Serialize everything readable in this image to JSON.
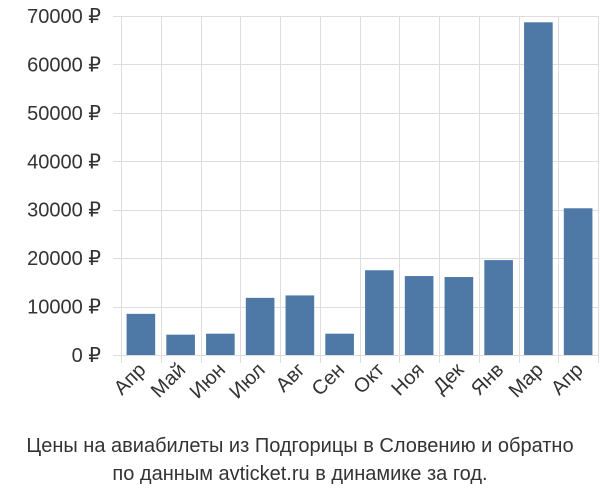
{
  "chart_data": {
    "type": "bar",
    "categories": [
      "Апр",
      "Май",
      "Июн",
      "Июл",
      "Авг",
      "Сен",
      "Окт",
      "Ноя",
      "Дек",
      "Янв",
      "Мар",
      "Апр"
    ],
    "values": [
      8500,
      4200,
      4400,
      11800,
      12300,
      4400,
      17500,
      16300,
      16100,
      19600,
      68700,
      30300
    ],
    "ylim": [
      0,
      70000
    ],
    "yticks": [
      0,
      10000,
      20000,
      30000,
      40000,
      50000,
      60000,
      70000
    ],
    "ytick_labels": [
      "0 ₽",
      "10000 ₽",
      "20000 ₽",
      "30000 ₽",
      "40000 ₽",
      "50000 ₽",
      "60000 ₽",
      "70000 ₽"
    ],
    "grid": true,
    "bar_color": "#4e79a7"
  },
  "caption": {
    "line1": "Цены на авиабилеты из Подгорицы в Словению и обратно",
    "line2": "по данным avticket.ru в динамике за год."
  }
}
